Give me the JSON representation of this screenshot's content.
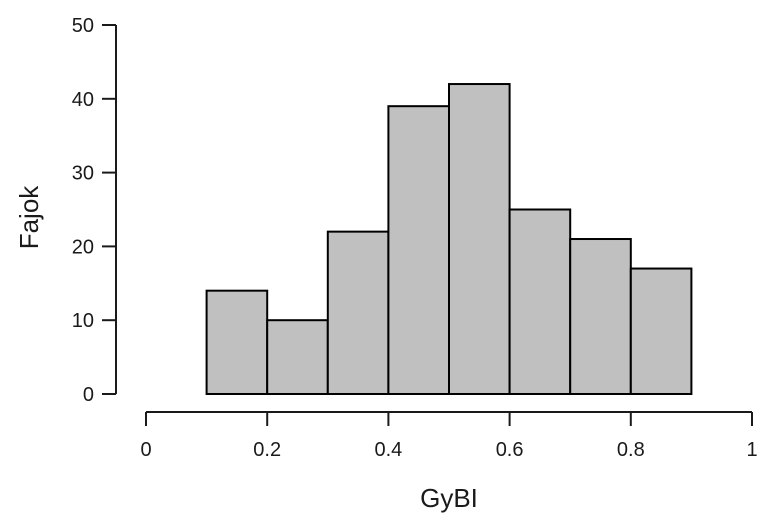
{
  "chart_data": {
    "type": "bar",
    "title": "",
    "xlabel": "GyBI",
    "ylabel": "Fajok",
    "bins": [
      {
        "x0": 0.1,
        "x1": 0.2,
        "count": 14
      },
      {
        "x0": 0.2,
        "x1": 0.3,
        "count": 10
      },
      {
        "x0": 0.3,
        "x1": 0.4,
        "count": 22
      },
      {
        "x0": 0.4,
        "x1": 0.5,
        "count": 39
      },
      {
        "x0": 0.5,
        "x1": 0.6,
        "count": 42
      },
      {
        "x0": 0.6,
        "x1": 0.7,
        "count": 25
      },
      {
        "x0": 0.7,
        "x1": 0.8,
        "count": 21
      },
      {
        "x0": 0.8,
        "x1": 0.9,
        "count": 17
      }
    ],
    "xlim": [
      0,
      1
    ],
    "ylim": [
      0,
      50
    ],
    "x_ticks": [
      "0",
      "0.2",
      "0.4",
      "0.6",
      "0.8",
      "1"
    ],
    "x_tick_values": [
      0,
      0.2,
      0.4,
      0.6,
      0.8,
      1
    ],
    "y_ticks": [
      "0",
      "10",
      "20",
      "30",
      "40",
      "50"
    ],
    "y_tick_values": [
      0,
      10,
      20,
      30,
      40,
      50
    ],
    "grid": false,
    "bar_color": "#c0c0c0",
    "edge_color": "#000000"
  }
}
